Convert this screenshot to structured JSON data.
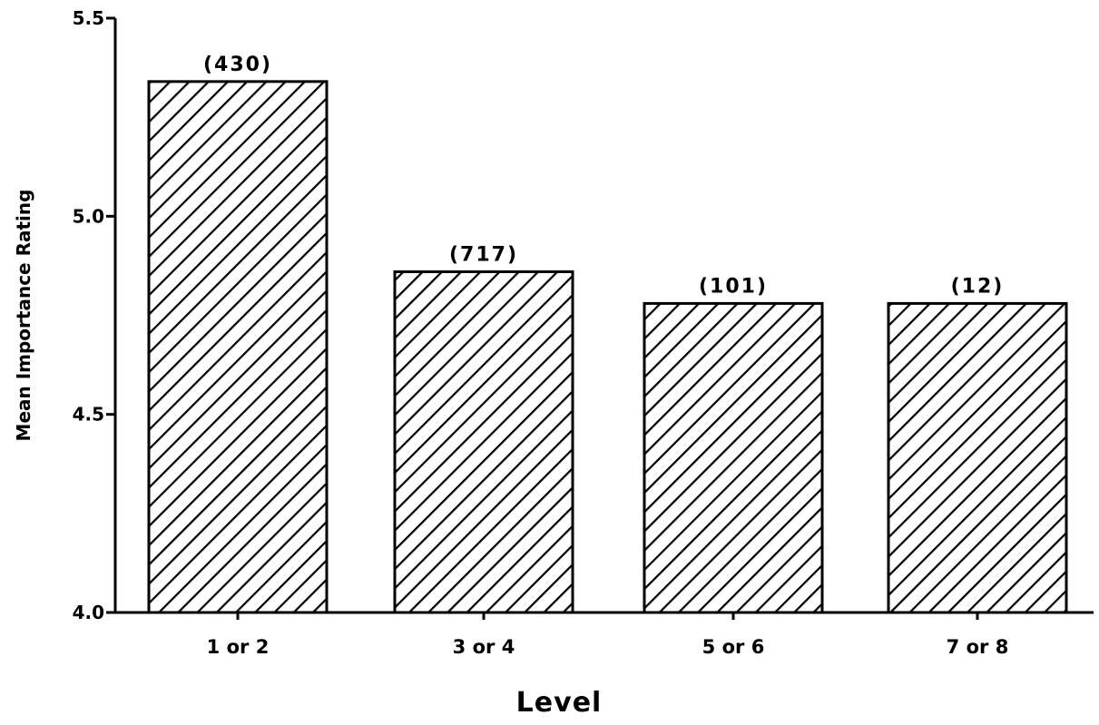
{
  "chart_data": {
    "type": "bar",
    "title": "",
    "xlabel": "Level",
    "ylabel": "Mean Importance Rating",
    "categories": [
      "1 or 2",
      "3 or 4",
      "5 or 6",
      "7 or 8"
    ],
    "values": [
      5.34,
      4.86,
      4.78,
      4.78
    ],
    "data_labels": [
      "(430)",
      "(717)",
      "(101)",
      "(12)"
    ],
    "ylim": [
      4.0,
      5.5
    ],
    "yticks": [
      "4.0",
      "4.5",
      "5.0",
      "5.5"
    ],
    "grid": false,
    "bar_fill": "diagonal hatch",
    "colors": {
      "bar_stroke": "#000000",
      "hatch": "#000000",
      "background": "#ffffff"
    }
  }
}
